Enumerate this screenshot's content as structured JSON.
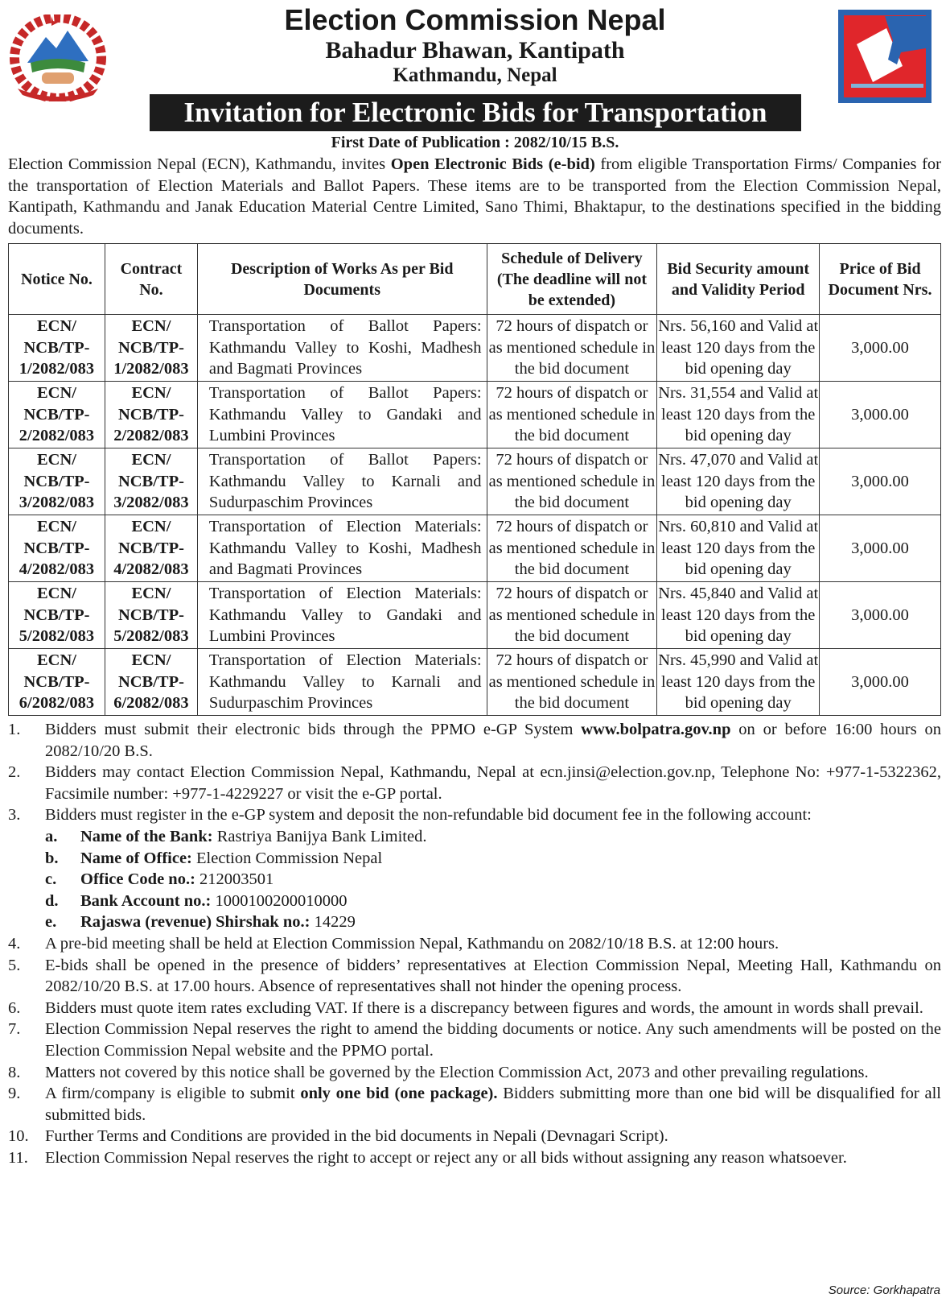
{
  "header": {
    "org": "Election Commission Nepal",
    "address1": "Bahadur Bhawan, Kantipath",
    "address2": "Kathmandu, Nepal",
    "banner": "Invitation for Electronic Bids for Transportation",
    "pub_date": "First Date of Publication : 2082/10/15 B.S."
  },
  "intro": {
    "p1": "Election Commission Nepal (ECN), Kathmandu, invites ",
    "bold": "Open Electronic Bids (e-bid)",
    "p2": " from eligible Transportation Firms/ Companies for the transportation of Election Materials and Ballot Papers. These items are to be transported from the Election Commission Nepal, Kantipath, Kathmandu and Janak Education Material Centre Limited, Sano Thimi, Bhaktapur, to the destinations specified in the bidding documents."
  },
  "table": {
    "headers": [
      "Notice No.",
      "Contract No.",
      "Description of Works As per Bid Documents",
      "Schedule of Delivery (The deadline will not be extended)",
      "Bid Security amount and Validity Period",
      "Price of Bid Document Nrs."
    ],
    "rows": [
      {
        "notice": "ECN/ NCB/TP- 1/2082/083",
        "contract": "ECN/ NCB/TP- 1/2082/083",
        "desc": "Transportation of Ballot Papers: Kathmandu Valley to Koshi, Madhesh and Bagmati Provinces",
        "schedule": "72 hours of dispatch or as mentioned schedule in the bid document",
        "security": "Nrs. 56,160 and Valid at least 120 days from the bid opening day",
        "price": "3,000.00"
      },
      {
        "notice": "ECN/ NCB/TP- 2/2082/083",
        "contract": "ECN/ NCB/TP- 2/2082/083",
        "desc": "Transportation of Ballot Papers: Kathmandu Valley to Gandaki and Lumbini Provinces",
        "schedule": "72 hours of dispatch or as mentioned schedule in the bid document",
        "security": "Nrs. 31,554 and Valid at least 120 days from the bid opening day",
        "price": "3,000.00"
      },
      {
        "notice": "ECN/ NCB/TP- 3/2082/083",
        "contract": "ECN/ NCB/TP- 3/2082/083",
        "desc": "Transportation of Ballot Papers: Kathmandu Valley to Karnali and Sudurpaschim Provinces",
        "schedule": "72 hours of dispatch or as mentioned schedule in the bid document",
        "security": "Nrs. 47,070 and Valid at least 120 days from the bid opening day",
        "price": "3,000.00"
      },
      {
        "notice": "ECN/ NCB/TP- 4/2082/083",
        "contract": "ECN/ NCB/TP- 4/2082/083",
        "desc": "Transportation of Election Materials: Kathmandu Valley to Koshi, Madhesh and Bagmati Provinces",
        "schedule": "72 hours of dispatch or as mentioned schedule in the bid document",
        "security": "Nrs. 60,810 and Valid at least 120 days from the bid opening day",
        "price": "3,000.00"
      },
      {
        "notice": "ECN/ NCB/TP- 5/2082/083",
        "contract": "ECN/ NCB/TP- 5/2082/083",
        "desc": "Transportation of Election Materials: Kathmandu Valley to Gandaki and Lumbini Provinces",
        "schedule": "72 hours of dispatch or as mentioned schedule in the bid document",
        "security": "Nrs. 45,840 and Valid at least 120 days from the bid opening day",
        "price": "3,000.00"
      },
      {
        "notice": "ECN/ NCB/TP- 6/2082/083",
        "contract": "ECN/ NCB/TP- 6/2082/083",
        "desc": "Transportation of Election Materials: Kathmandu Valley to Karnali and Sudurpaschim Provinces",
        "schedule": "72 hours of dispatch or as mentioned schedule in the bid document",
        "security": "Nrs. 45,990 and Valid at least 120 days from the bid opening day",
        "price": "3,000.00"
      }
    ]
  },
  "notes": [
    {
      "n": "1.",
      "a": "Bidders must submit their electronic bids through the PPMO e-GP System ",
      "b": "www.bolpatra.gov.np",
      "c": " on or before 16:00 hours on 2082/10/20 B.S."
    },
    {
      "n": "2.",
      "a": "Bidders may contact Election Commission Nepal, Kathmandu, Nepal at ecn.jinsi@election.gov.np, Telephone No: +977-1-5322362, Facsimile number: +977-1-4229227 or visit the e-GP portal.",
      "b": "",
      "c": ""
    },
    {
      "n": "3.",
      "a": "Bidders must register in the e-GP system and deposit the non-refundable bid document fee in the following account:",
      "b": "",
      "c": ""
    },
    {
      "n": "4.",
      "a": "A pre-bid meeting shall be held at Election Commission Nepal, Kathmandu on 2082/10/18 B.S. at 12:00 hours.",
      "b": "",
      "c": ""
    },
    {
      "n": "5.",
      "a": "E-bids shall be opened in the presence of bidders’ representatives at Election Commission Nepal, Meeting Hall, Kathmandu on 2082/10/20 B.S. at 17.00 hours. Absence of representatives shall not hinder the opening process.",
      "b": "",
      "c": ""
    },
    {
      "n": "6.",
      "a": "Bidders must quote item rates excluding VAT. If there is a discrepancy between figures and words, the amount in words shall prevail.",
      "b": "",
      "c": ""
    },
    {
      "n": "7.",
      "a": "Election Commission Nepal reserves the right to amend the bidding documents or notice. Any such amendments will be posted on the Election Commission Nepal website and the PPMO portal.",
      "b": "",
      "c": ""
    },
    {
      "n": "8.",
      "a": "Matters not covered by this notice shall be governed by the Election Commission Act, 2073 and other prevailing regulations.",
      "b": "",
      "c": ""
    },
    {
      "n": "9.",
      "a": "A firm/company is eligible to submit ",
      "b": "only one bid (one package).",
      "c": " Bidders submitting more than one bid will be disqualified for all submitted bids."
    },
    {
      "n": "10.",
      "a": "Further Terms and Conditions are provided in the bid documents in Nepali (Devnagari Script).",
      "b": "",
      "c": ""
    },
    {
      "n": "11.",
      "a": "Election Commission Nepal reserves the right to accept or reject any or all bids without assigning any reason whatsoever.",
      "b": "",
      "c": ""
    }
  ],
  "bank": [
    {
      "n": "a.",
      "label": "Name of the Bank:",
      "value": " Rastriya Banijya Bank Limited."
    },
    {
      "n": "b.",
      "label": "Name of Office:",
      "value": " Election Commission Nepal"
    },
    {
      "n": "c.",
      "label": "Office Code no.:",
      "value": " 212003501"
    },
    {
      "n": "d.",
      "label": "Bank Account no.:",
      "value": " 1000100200010000"
    },
    {
      "n": "e.",
      "label": "Rajaswa (revenue) Shirshak no.:",
      "value": " 14229"
    }
  ],
  "source": "Source: Gorkhapatra",
  "colors": {
    "banner_bg": "#1c1c1c",
    "logo_red": "#e0262b",
    "logo_blue": "#2a64b0"
  }
}
